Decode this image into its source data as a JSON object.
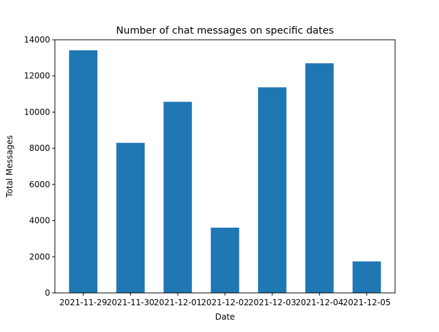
{
  "chart_data": {
    "type": "bar",
    "title": "Number of chat messages on specific dates",
    "xlabel": "Date",
    "ylabel": "Total Messages",
    "categories": [
      "2021-11-29",
      "2021-11-30",
      "2021-12-01",
      "2021-12-02",
      "2021-12-03",
      "2021-12-04",
      "2021-12-05"
    ],
    "values": [
      13420,
      8300,
      10570,
      3610,
      11370,
      12700,
      1740
    ],
    "ylim": [
      0,
      14000
    ],
    "yticks": [
      0,
      2000,
      4000,
      6000,
      8000,
      10000,
      12000,
      14000
    ],
    "grid": false,
    "legend": "none",
    "bar_color": "#1f77b4"
  }
}
